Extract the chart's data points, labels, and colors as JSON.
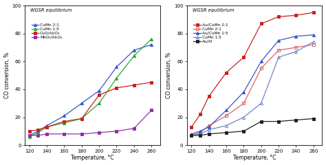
{
  "temperature": [
    120,
    130,
    140,
    160,
    180,
    200,
    220,
    240,
    260
  ],
  "panel_a": {
    "title": "WGSR equilibrium",
    "xlabel": "Temperature, °C",
    "ylabel": "CO conversion, %",
    "ylim": [
      0,
      100
    ],
    "xlim": [
      115,
      270
    ],
    "xticks": [
      120,
      140,
      160,
      180,
      200,
      220,
      240,
      260
    ],
    "yticks": [
      0,
      20,
      40,
      60,
      80,
      100
    ],
    "series": [
      {
        "label": "CuMn 2:1",
        "color": "#3555cc",
        "marker": "^",
        "fillstyle": "full",
        "values": [
          7,
          10,
          14,
          21,
          30,
          39,
          56,
          68,
          72
        ]
      },
      {
        "label": "CuMn 1:5",
        "color": "#28a828",
        "marker": "^",
        "fillstyle": "full",
        "values": [
          6,
          9,
          13,
          16,
          19,
          30,
          48,
          64,
          76
        ]
      },
      {
        "label": "CuO/Al₂O₃",
        "color": "#cc2020",
        "marker": "s",
        "fillstyle": "full",
        "values": [
          10,
          11,
          13,
          17,
          19,
          36,
          41,
          43,
          45
        ]
      },
      {
        "label": "MnO₂/Al₂O₃",
        "color": "#9030a8",
        "marker": "s",
        "fillstyle": "full",
        "values": [
          7,
          7,
          8,
          8,
          8,
          9,
          10,
          12,
          25
        ]
      }
    ]
  },
  "panel_b": {
    "title": "WGSR equilibrium",
    "xlabel": "Temperature, °C",
    "ylabel": "CO conversion, %",
    "ylim": [
      0,
      100
    ],
    "xlim": [
      115,
      270
    ],
    "xticks": [
      120,
      140,
      160,
      180,
      200,
      220,
      240,
      260
    ],
    "yticks": [
      0,
      20,
      40,
      60,
      80,
      100
    ],
    "series": [
      {
        "label": "Au/CuMn 2:1",
        "color": "#cc2020",
        "marker": "s",
        "fillstyle": "full",
        "values": [
          13,
          22,
          35,
          52,
          63,
          87,
          92,
          93,
          95
        ]
      },
      {
        "label": "CuMn 2:1",
        "color": "#e06060",
        "marker": "s",
        "fillstyle": "none",
        "values": [
          7,
          9,
          14,
          21,
          30,
          55,
          68,
          70,
          72
        ]
      },
      {
        "label": "Au/CuMn 1:5",
        "color": "#3555cc",
        "marker": "^",
        "fillstyle": "full",
        "values": [
          8,
          10,
          13,
          25,
          38,
          60,
          75,
          78,
          79
        ]
      },
      {
        "label": "CuMn 1:5",
        "color": "#7080cc",
        "marker": "^",
        "fillstyle": "none",
        "values": [
          7,
          8,
          11,
          14,
          20,
          30,
          63,
          67,
          74
        ]
      },
      {
        "label": "Au/Al",
        "color": "#202020",
        "marker": "s",
        "fillstyle": "full",
        "values": [
          7,
          7,
          8,
          9,
          10,
          17,
          17,
          18,
          19
        ]
      }
    ]
  },
  "fig_width": 4.74,
  "fig_height": 2.4,
  "dpi": 100
}
